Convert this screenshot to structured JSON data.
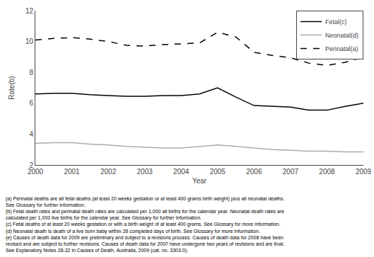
{
  "chart_data": {
    "type": "line",
    "x_label": "Year",
    "y_label": "Rate(b)",
    "x": [
      2000,
      2000.5,
      2001,
      2001.5,
      2002,
      2002.5,
      2003,
      2003.5,
      2004,
      2004.5,
      2005,
      2005.5,
      2006,
      2006.5,
      2007,
      2007.5,
      2008,
      2008.5,
      2009
    ],
    "series": [
      {
        "name": "Fetal(c)",
        "color": "#000000",
        "line_style": "solid",
        "values": [
          6.6,
          6.65,
          6.65,
          6.55,
          6.5,
          6.45,
          6.45,
          6.5,
          6.5,
          6.6,
          7.0,
          6.4,
          5.85,
          5.8,
          5.75,
          5.55,
          5.55,
          5.8,
          6.0
        ]
      },
      {
        "name": "Neonatal(d)",
        "color": "#aaaaaa",
        "line_style": "solid",
        "values": [
          3.4,
          3.45,
          3.45,
          3.35,
          3.3,
          3.2,
          3.15,
          3.1,
          3.1,
          3.2,
          3.3,
          3.2,
          3.1,
          3.0,
          2.95,
          2.9,
          2.9,
          2.85,
          2.85
        ]
      },
      {
        "name": "Perinatal(a)",
        "color": "#000000",
        "line_style": "dashed",
        "values": [
          10.1,
          10.2,
          10.25,
          10.15,
          10.0,
          9.75,
          9.7,
          9.8,
          9.85,
          9.9,
          10.6,
          10.3,
          9.3,
          9.1,
          8.95,
          8.6,
          8.45,
          8.65,
          9.0
        ]
      }
    ],
    "xlim": [
      2000,
      2009
    ],
    "xticks": [
      2000,
      2001,
      2002,
      2003,
      2004,
      2005,
      2006,
      2007,
      2008,
      2009
    ],
    "ylim": [
      2,
      12
    ],
    "yticks": [
      2,
      4,
      6,
      8,
      10,
      12
    ],
    "grid": false,
    "legend": "upper right",
    "annotations": [
      "(a) Perinatal deaths are all fetal deaths (at least 20 weeks gestation or at least 400 grams birth weight) plus all neonatal deaths.",
      "See Glossary for further information.",
      "(b) Fetal death rates and perinatal death rates are calculated per 1,000 all births for the calendar year. Neonatal death rates are",
      "calculated per 1,000 live births for the calendar year. See Glossary for further information.",
      "(c) Fetal deaths of at least 20 weeks gestation or with a birth weight of at least 400 grams. See Glossary for more information.",
      "(d) Neonatal death is death of a live born baby within 28 completed days of birth. See Glossary for more information.",
      "(e) Causes of death data for 2009 are preliminary and subject to a revisions process. Causes of death data for 2008 have been",
      "revised and are subject to further revisions. Causes of death data for 2007 have undergone two years of revisions and are final.",
      "See Explanatory Notes 28-32 in Causes of Death, Australia, 2009 (cat. no. 3303.0)."
    ]
  }
}
